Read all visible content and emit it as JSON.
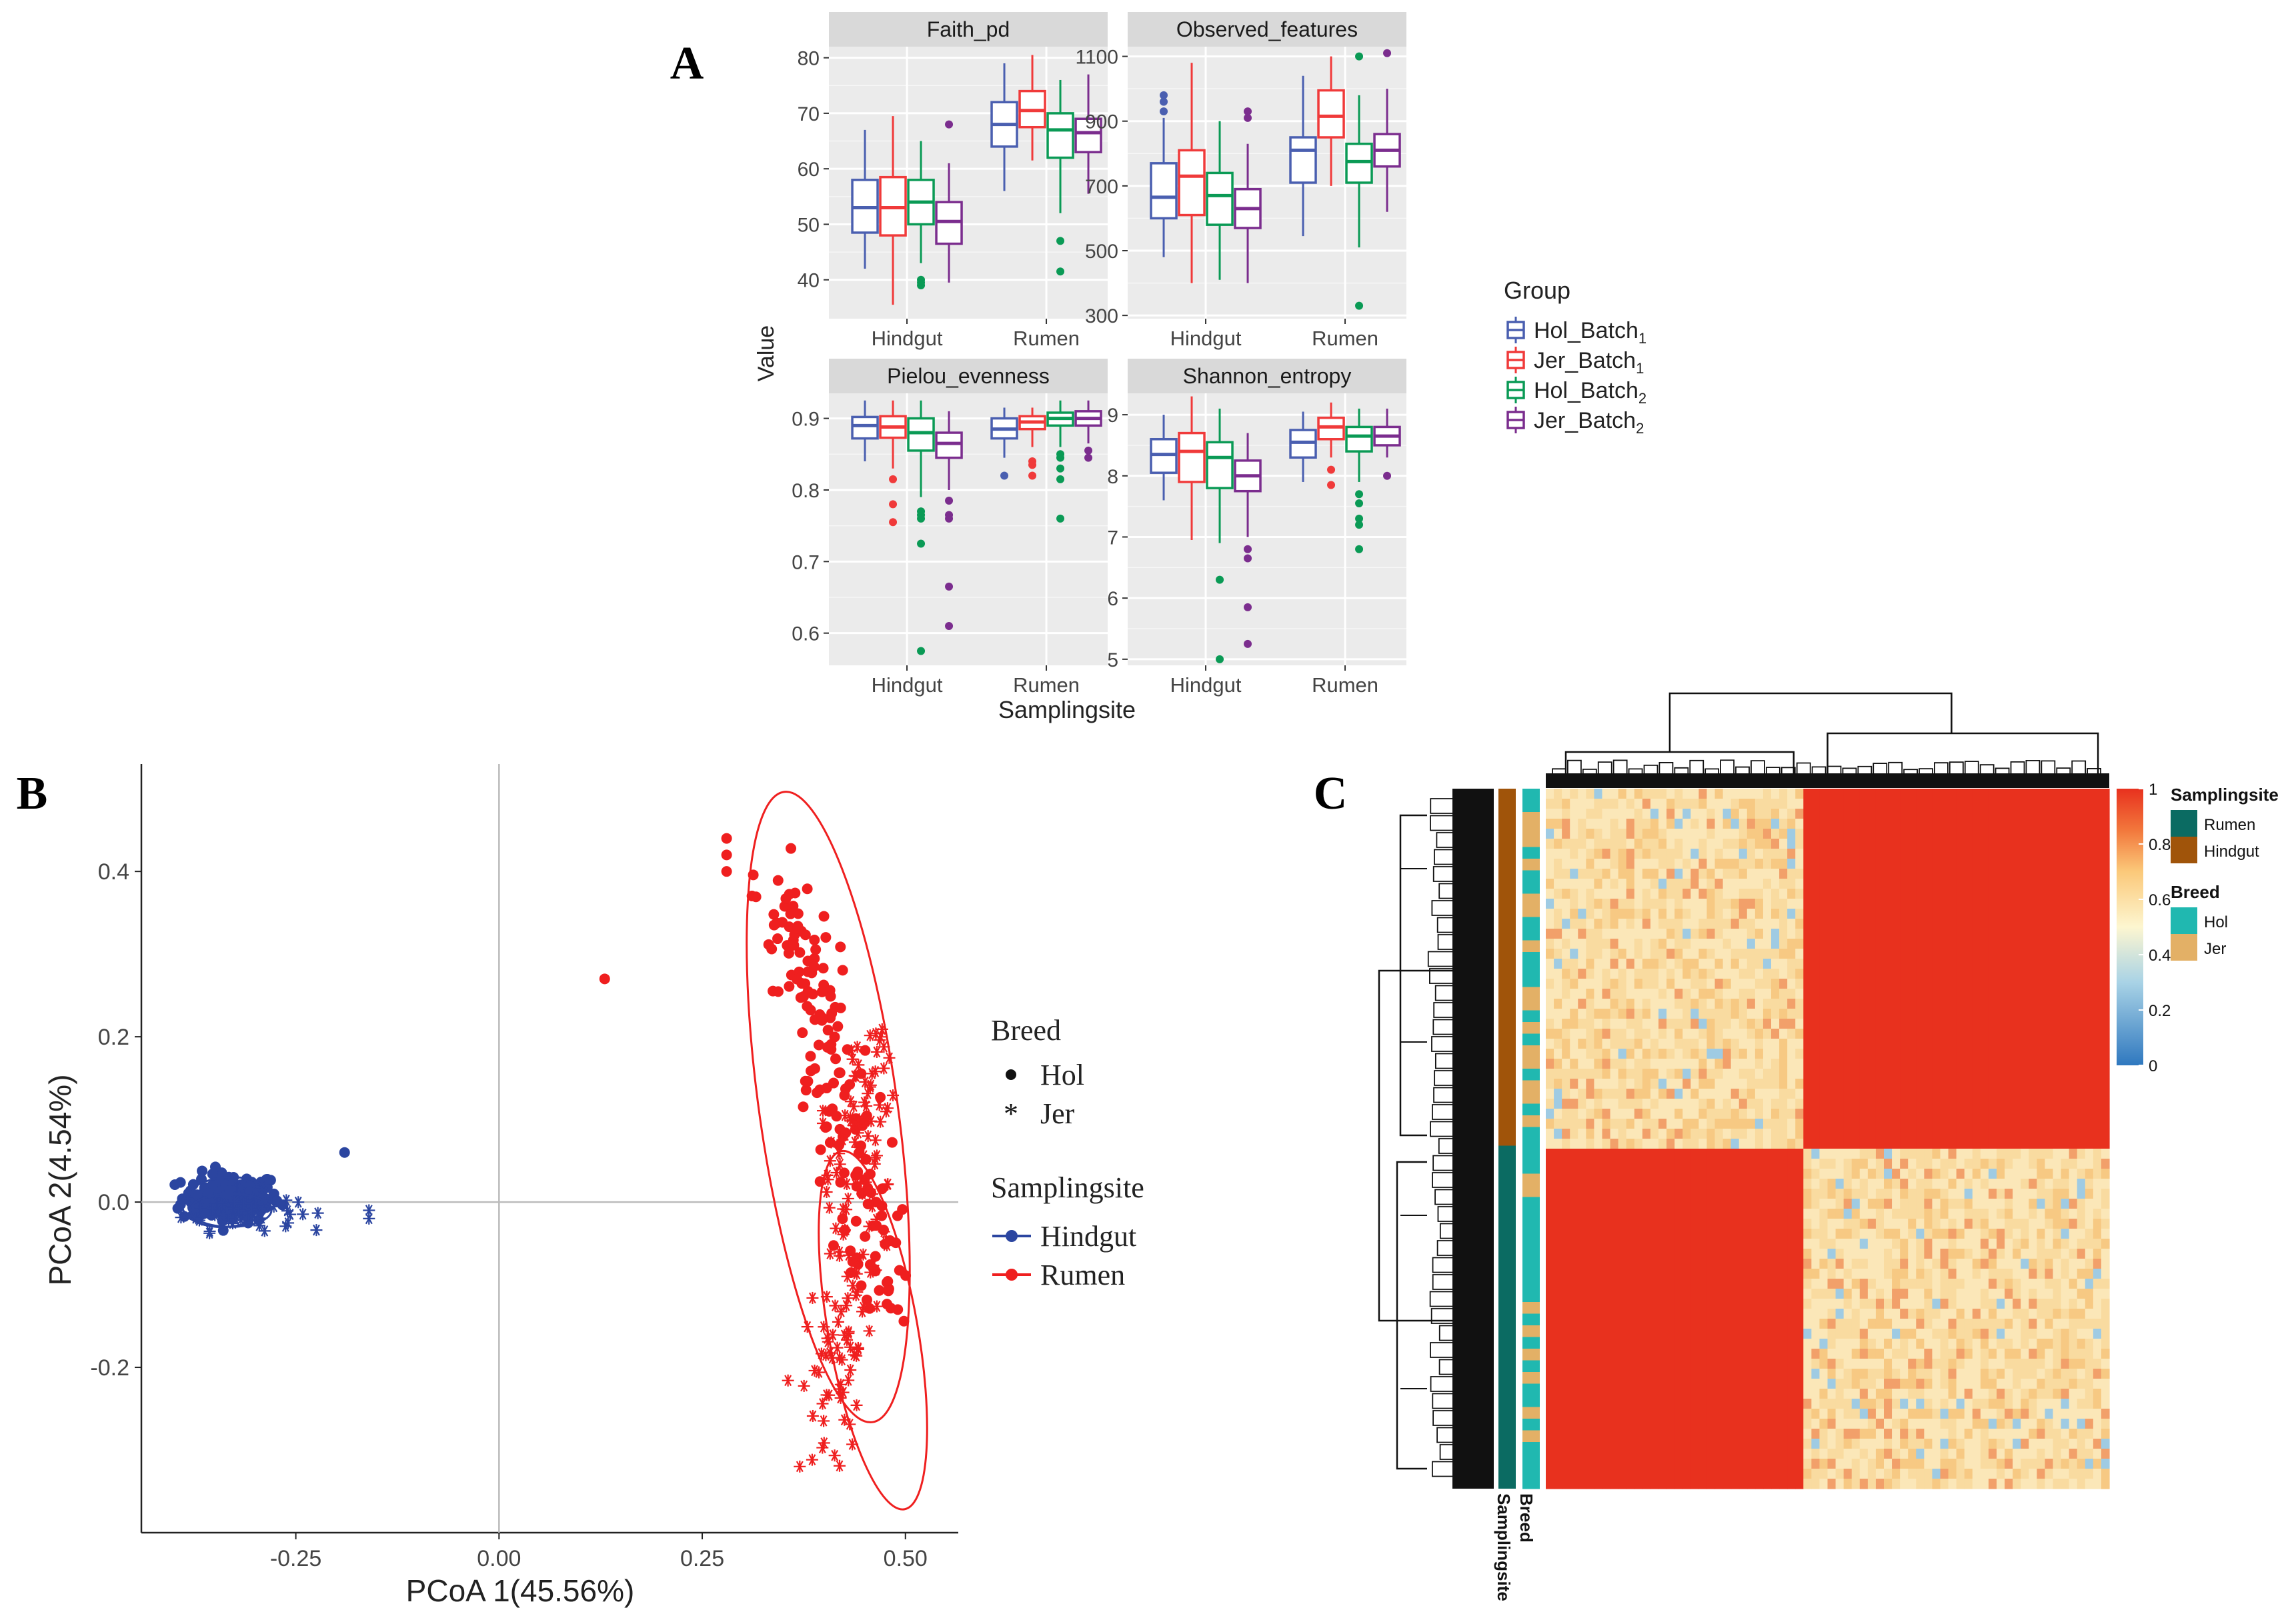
{
  "panel_labels": {
    "a": "A",
    "b": "B",
    "c": "C"
  },
  "colors": {
    "hol_batch1": "#4a5fb0",
    "jer_batch1": "#f03a3a",
    "hol_batch2": "#0a9a55",
    "jer_batch2": "#7b2d8e",
    "hindgut": "#2b45a0",
    "rumen": "#ef1f1f",
    "panel_bg": "#ebebeb",
    "strip_bg": "#d9d9d9",
    "grid": "#ffffff",
    "heat_high": "#e8311e",
    "heat_mid": "#fbe6b0",
    "heat_low": "#4a90c8",
    "site_rumen": "#0b6b62",
    "site_hindgut": "#a0540a",
    "breed_hol": "#20b8b0",
    "breed_jer": "#e3b066"
  },
  "chart_data": [
    {
      "id": "A",
      "type": "boxplot",
      "ylabel": "Value",
      "xlabel": "Samplingsite",
      "categories": [
        "Hindgut",
        "Rumen"
      ],
      "legend": {
        "title": "Group",
        "entries": [
          {
            "base": "Hol_Batch",
            "sub": "1",
            "color_key": "hol_batch1"
          },
          {
            "base": "Jer_Batch",
            "sub": "1",
            "color_key": "jer_batch1"
          },
          {
            "base": "Hol_Batch",
            "sub": "2",
            "color_key": "hol_batch2"
          },
          {
            "base": "Jer_Batch",
            "sub": "2",
            "color_key": "jer_batch2"
          }
        ]
      },
      "facets": [
        {
          "title": "Faith_pd",
          "ylim": [
            33,
            82
          ],
          "yticks": [
            40,
            50,
            60,
            70,
            80
          ],
          "boxes": {
            "Hindgut": [
              {
                "q1": 48.5,
                "median": 53,
                "q3": 58,
                "lo": 42,
                "hi": 67,
                "out": []
              },
              {
                "q1": 48,
                "median": 53,
                "q3": 58.5,
                "lo": 35.5,
                "hi": 69.5,
                "out": []
              },
              {
                "q1": 50,
                "median": 54,
                "q3": 58,
                "lo": 43,
                "hi": 65,
                "out": [
                  40,
                  39.5,
                  39
                ]
              },
              {
                "q1": 46.5,
                "median": 50.5,
                "q3": 54,
                "lo": 39.5,
                "hi": 61,
                "out": [
                  68
                ]
              }
            ],
            "Rumen": [
              {
                "q1": 64,
                "median": 68,
                "q3": 72,
                "lo": 56,
                "hi": 79,
                "out": []
              },
              {
                "q1": 67.5,
                "median": 70.5,
                "q3": 74,
                "lo": 61.5,
                "hi": 80.5,
                "out": []
              },
              {
                "q1": 62,
                "median": 67,
                "q3": 70,
                "lo": 52,
                "hi": 76,
                "out": [
                  47,
                  41.5
                ]
              },
              {
                "q1": 63,
                "median": 66.5,
                "q3": 69,
                "lo": 55.5,
                "hi": 77,
                "out": []
              }
            ]
          }
        },
        {
          "title": "Observed_features",
          "ylim": [
            290,
            1130
          ],
          "yticks": [
            300,
            500,
            700,
            900,
            1100
          ],
          "boxes": {
            "Hindgut": [
              {
                "q1": 600,
                "median": 665,
                "q3": 770,
                "lo": 480,
                "hi": 910,
                "out": [
                  980,
                  960,
                  930
                ]
              },
              {
                "q1": 610,
                "median": 730,
                "q3": 810,
                "lo": 400,
                "hi": 1080,
                "out": []
              },
              {
                "q1": 580,
                "median": 670,
                "q3": 740,
                "lo": 410,
                "hi": 900,
                "out": []
              },
              {
                "q1": 570,
                "median": 630,
                "q3": 690,
                "lo": 400,
                "hi": 830,
                "out": [
                  930,
                  910
                ]
              }
            ],
            "Rumen": [
              {
                "q1": 710,
                "median": 810,
                "q3": 850,
                "lo": 545,
                "hi": 1040,
                "out": []
              },
              {
                "q1": 850,
                "median": 915,
                "q3": 995,
                "lo": 700,
                "hi": 1100,
                "out": []
              },
              {
                "q1": 710,
                "median": 775,
                "q3": 830,
                "lo": 510,
                "hi": 980,
                "out": [
                  1100,
                  330
                ]
              },
              {
                "q1": 760,
                "median": 810,
                "q3": 860,
                "lo": 620,
                "hi": 1000,
                "out": [
                  1110
                ]
              }
            ]
          }
        },
        {
          "title": "Pielou_evenness",
          "ylim": [
            0.555,
            0.935
          ],
          "yticks": [
            0.6,
            0.7,
            0.8,
            0.9
          ],
          "tick_labels": [
            "0.6",
            "0.7",
            "0.8",
            "0.9"
          ],
          "boxes": {
            "Hindgut": [
              {
                "q1": 0.872,
                "median": 0.89,
                "q3": 0.902,
                "lo": 0.84,
                "hi": 0.925,
                "out": []
              },
              {
                "q1": 0.873,
                "median": 0.888,
                "q3": 0.903,
                "lo": 0.83,
                "hi": 0.925,
                "out": [
                  0.815,
                  0.78,
                  0.755
                ]
              },
              {
                "q1": 0.855,
                "median": 0.88,
                "q3": 0.9,
                "lo": 0.79,
                "hi": 0.925,
                "out": [
                  0.77,
                  0.765,
                  0.76,
                  0.725,
                  0.575
                ]
              },
              {
                "q1": 0.845,
                "median": 0.865,
                "q3": 0.88,
                "lo": 0.8,
                "hi": 0.91,
                "out": [
                  0.785,
                  0.765,
                  0.76,
                  0.665,
                  0.61
                ]
              }
            ],
            "Rumen": [
              {
                "q1": 0.872,
                "median": 0.885,
                "q3": 0.9,
                "lo": 0.845,
                "hi": 0.915,
                "out": [
                  0.82
                ]
              },
              {
                "q1": 0.885,
                "median": 0.895,
                "q3": 0.903,
                "lo": 0.86,
                "hi": 0.915,
                "out": [
                  0.84,
                  0.835,
                  0.82
                ]
              },
              {
                "q1": 0.89,
                "median": 0.9,
                "q3": 0.908,
                "lo": 0.86,
                "hi": 0.925,
                "out": [
                  0.85,
                  0.845,
                  0.83,
                  0.815,
                  0.76
                ]
              },
              {
                "q1": 0.89,
                "median": 0.9,
                "q3": 0.91,
                "lo": 0.865,
                "hi": 0.925,
                "out": [
                  0.855,
                  0.845
                ]
              }
            ]
          }
        },
        {
          "title": "Shannon_entropy",
          "ylim": [
            4.9,
            9.35
          ],
          "yticks": [
            5,
            6,
            7,
            8,
            9
          ],
          "boxes": {
            "Hindgut": [
              {
                "q1": 8.05,
                "median": 8.35,
                "q3": 8.6,
                "lo": 7.6,
                "hi": 9.0,
                "out": []
              },
              {
                "q1": 7.9,
                "median": 8.4,
                "q3": 8.7,
                "lo": 6.95,
                "hi": 9.3,
                "out": []
              },
              {
                "q1": 7.8,
                "median": 8.3,
                "q3": 8.55,
                "lo": 6.9,
                "hi": 9.1,
                "out": [
                  6.3,
                  5.0
                ]
              },
              {
                "q1": 7.75,
                "median": 8.0,
                "q3": 8.25,
                "lo": 7.0,
                "hi": 8.7,
                "out": [
                  6.8,
                  6.65,
                  5.85,
                  5.25
                ]
              }
            ],
            "Rumen": [
              {
                "q1": 8.3,
                "median": 8.55,
                "q3": 8.75,
                "lo": 7.9,
                "hi": 9.05,
                "out": []
              },
              {
                "q1": 8.6,
                "median": 8.8,
                "q3": 8.95,
                "lo": 8.3,
                "hi": 9.2,
                "out": [
                  8.1,
                  7.85
                ]
              },
              {
                "q1": 8.4,
                "median": 8.65,
                "q3": 8.8,
                "lo": 7.9,
                "hi": 9.1,
                "out": [
                  7.7,
                  7.55,
                  7.3,
                  7.2,
                  6.8
                ]
              },
              {
                "q1": 8.5,
                "median": 8.65,
                "q3": 8.8,
                "lo": 8.3,
                "hi": 9.1,
                "out": [
                  8.0
                ]
              }
            ]
          }
        }
      ]
    },
    {
      "id": "B",
      "type": "scatter",
      "xlabel": "PCoA 1(45.56%)",
      "ylabel": "PCoA 2(4.54%)",
      "xlim": [
        -0.44,
        0.565
      ],
      "ylim": [
        -0.4,
        0.53
      ],
      "xticks": [
        -0.25,
        0.0,
        0.25,
        0.5
      ],
      "xtick_labels": [
        "-0.25",
        "0.00",
        "0.25",
        "0.50"
      ],
      "yticks": [
        -0.2,
        0.0,
        0.2,
        0.4
      ],
      "ytick_labels": [
        "-0.2",
        "0.0",
        "0.2",
        "0.4"
      ],
      "legend_breed": {
        "title": "Breed",
        "entries": [
          "Hol",
          "Jer"
        ]
      },
      "legend_site": {
        "title": "Samplingsite",
        "entries": [
          "Hindgut",
          "Rumen"
        ]
      },
      "clusters": [
        {
          "site": "Hindgut",
          "breed": "Hol",
          "shape": "dot",
          "count": 170,
          "cx": -0.33,
          "cy": 0.005,
          "sx": 0.03,
          "sy": 0.015
        },
        {
          "site": "Hindgut",
          "breed": "Jer",
          "shape": "star",
          "count": 60,
          "cx": -0.32,
          "cy": -0.01,
          "sx": 0.035,
          "sy": 0.012
        },
        {
          "site": "Rumen",
          "breed": "Hol",
          "shape": "dot",
          "count": 170,
          "cx": 0.43,
          "cy": 0.1,
          "sx": 0.05,
          "sy": 0.15
        },
        {
          "site": "Rumen",
          "breed": "Jer",
          "shape": "star",
          "count": 150,
          "cx": 0.45,
          "cy": -0.12,
          "sx": 0.035,
          "sy": 0.08
        }
      ],
      "extra_points": [
        {
          "x": 0.13,
          "y": 0.27,
          "site": "Rumen",
          "shape": "dot"
        },
        {
          "x": 0.28,
          "y": 0.44,
          "site": "Rumen",
          "shape": "dot"
        },
        {
          "x": 0.28,
          "y": 0.42,
          "site": "Rumen",
          "shape": "dot"
        },
        {
          "x": 0.28,
          "y": 0.4,
          "site": "Rumen",
          "shape": "dot"
        },
        {
          "x": 0.37,
          "y": -0.32,
          "site": "Rumen",
          "shape": "star"
        },
        {
          "x": -0.19,
          "y": 0.06,
          "site": "Hindgut",
          "shape": "dot"
        },
        {
          "x": -0.16,
          "y": -0.02,
          "site": "Hindgut",
          "shape": "star"
        },
        {
          "x": -0.16,
          "y": -0.01,
          "site": "Hindgut",
          "shape": "star"
        }
      ],
      "ellipses": [
        {
          "site": "Rumen",
          "group": "Hol",
          "cx": 0.405,
          "cy": 0.115,
          "rx": 0.085,
          "ry": 0.385,
          "angle_deg": -8
        },
        {
          "site": "Rumen",
          "group": "Jer",
          "cx": 0.46,
          "cy": -0.155,
          "rx": 0.055,
          "ry": 0.22,
          "angle_deg": -10
        },
        {
          "site": "Hindgut",
          "group": "Hol",
          "cx": -0.335,
          "cy": 0.0,
          "rx": 0.055,
          "ry": 0.03,
          "angle_deg": -5
        },
        {
          "site": "Hindgut",
          "group": "Jer",
          "cx": -0.33,
          "cy": -0.01,
          "rx": 0.05,
          "ry": 0.02,
          "angle_deg": 0
        }
      ]
    },
    {
      "id": "C",
      "type": "heatmap",
      "value_range": [
        0,
        1
      ],
      "colorbar_ticks": [
        0,
        0.2,
        0.4,
        0.6,
        0.8,
        1
      ],
      "colorbar_labels": [
        "0",
        "0.2",
        "0.4",
        "0.6",
        "0.8",
        "1"
      ],
      "block_split_fraction": 0.51,
      "blocks": [
        {
          "rows": "Hindgut",
          "cols": "Hindgut",
          "value_range": [
            0.6,
            0.8
          ]
        },
        {
          "rows": "Hindgut",
          "cols": "Rumen",
          "value": 1.0
        },
        {
          "rows": "Rumen",
          "cols": "Hindgut",
          "value": 1.0
        },
        {
          "rows": "Rumen",
          "cols": "Rumen",
          "value_range": [
            0.6,
            0.8
          ]
        }
      ],
      "annotation_labels": [
        "Samplingsite",
        "Breed"
      ],
      "legend_samplingsite": {
        "title": "Samplingsite",
        "entries": [
          "Rumen",
          "Hindgut"
        ]
      },
      "legend_breed": {
        "title": "Breed",
        "entries": [
          "Hol",
          "Jer"
        ]
      }
    }
  ]
}
